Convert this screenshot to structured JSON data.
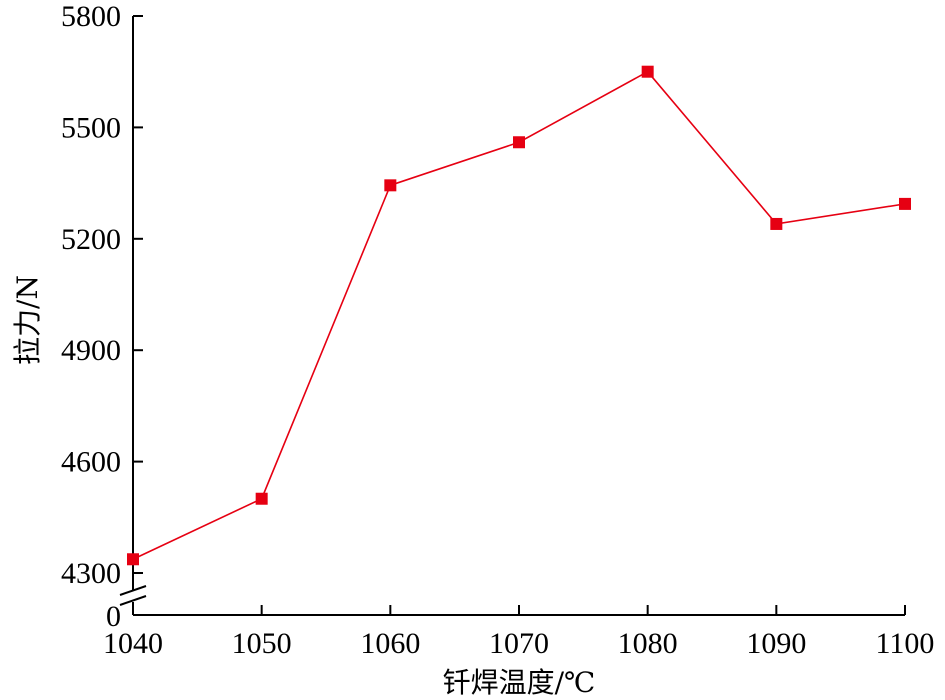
{
  "chart_data": {
    "type": "line",
    "xlabel": "钎焊温度/℃",
    "ylabel": "拉力/N",
    "x": [
      1040,
      1050,
      1060,
      1070,
      1080,
      1090,
      1100
    ],
    "series": [
      {
        "values": [
          4337,
          4500,
          5344,
          5460,
          5650,
          5240,
          5294
        ],
        "color": "#e60012",
        "marker": "square"
      }
    ],
    "xlim": [
      1040,
      1100
    ],
    "ylim": [
      4300,
      5800
    ],
    "yticks": [
      0,
      4300,
      4600,
      4900,
      5200,
      5500,
      5800
    ],
    "y_axis_break": true,
    "xticks": [
      1040,
      1050,
      1060,
      1070,
      1080,
      1090,
      1100
    ],
    "grid": false
  }
}
